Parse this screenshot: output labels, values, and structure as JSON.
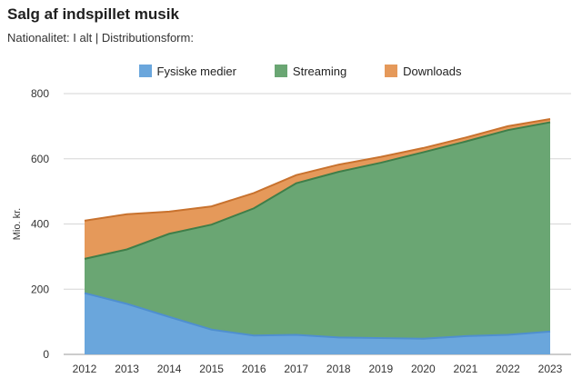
{
  "chart_data": {
    "type": "area",
    "stacked": true,
    "title": "Salg af indspillet musik",
    "subtitle": "Nationalitet: I alt | Distributionsform:",
    "ylabel": "Mio. kr.",
    "xlabel": "",
    "x": [
      "2012",
      "2013",
      "2014",
      "2015",
      "2016",
      "2017",
      "2018",
      "2019",
      "2020",
      "2021",
      "2022",
      "2023"
    ],
    "ylim": [
      0,
      800
    ],
    "yticks": [
      0,
      200,
      400,
      600,
      800
    ],
    "grid": true,
    "legend_position": "top",
    "series": [
      {
        "name": "Fysiske medier",
        "color": "#6aa6dc",
        "line_color": "#4f8fcf",
        "values": [
          188,
          155,
          115,
          76,
          58,
          60,
          52,
          50,
          48,
          56,
          60,
          70
        ]
      },
      {
        "name": "Streaming",
        "color": "#6aa673",
        "line_color": "#3f7e49",
        "values": [
          105,
          167,
          255,
          322,
          390,
          465,
          508,
          538,
          572,
          597,
          628,
          642
        ]
      },
      {
        "name": "Downloads",
        "color": "#e5995a",
        "line_color": "#c8722e",
        "values": [
          117,
          108,
          68,
          56,
          47,
          25,
          22,
          18,
          13,
          12,
          12,
          10
        ]
      }
    ]
  }
}
